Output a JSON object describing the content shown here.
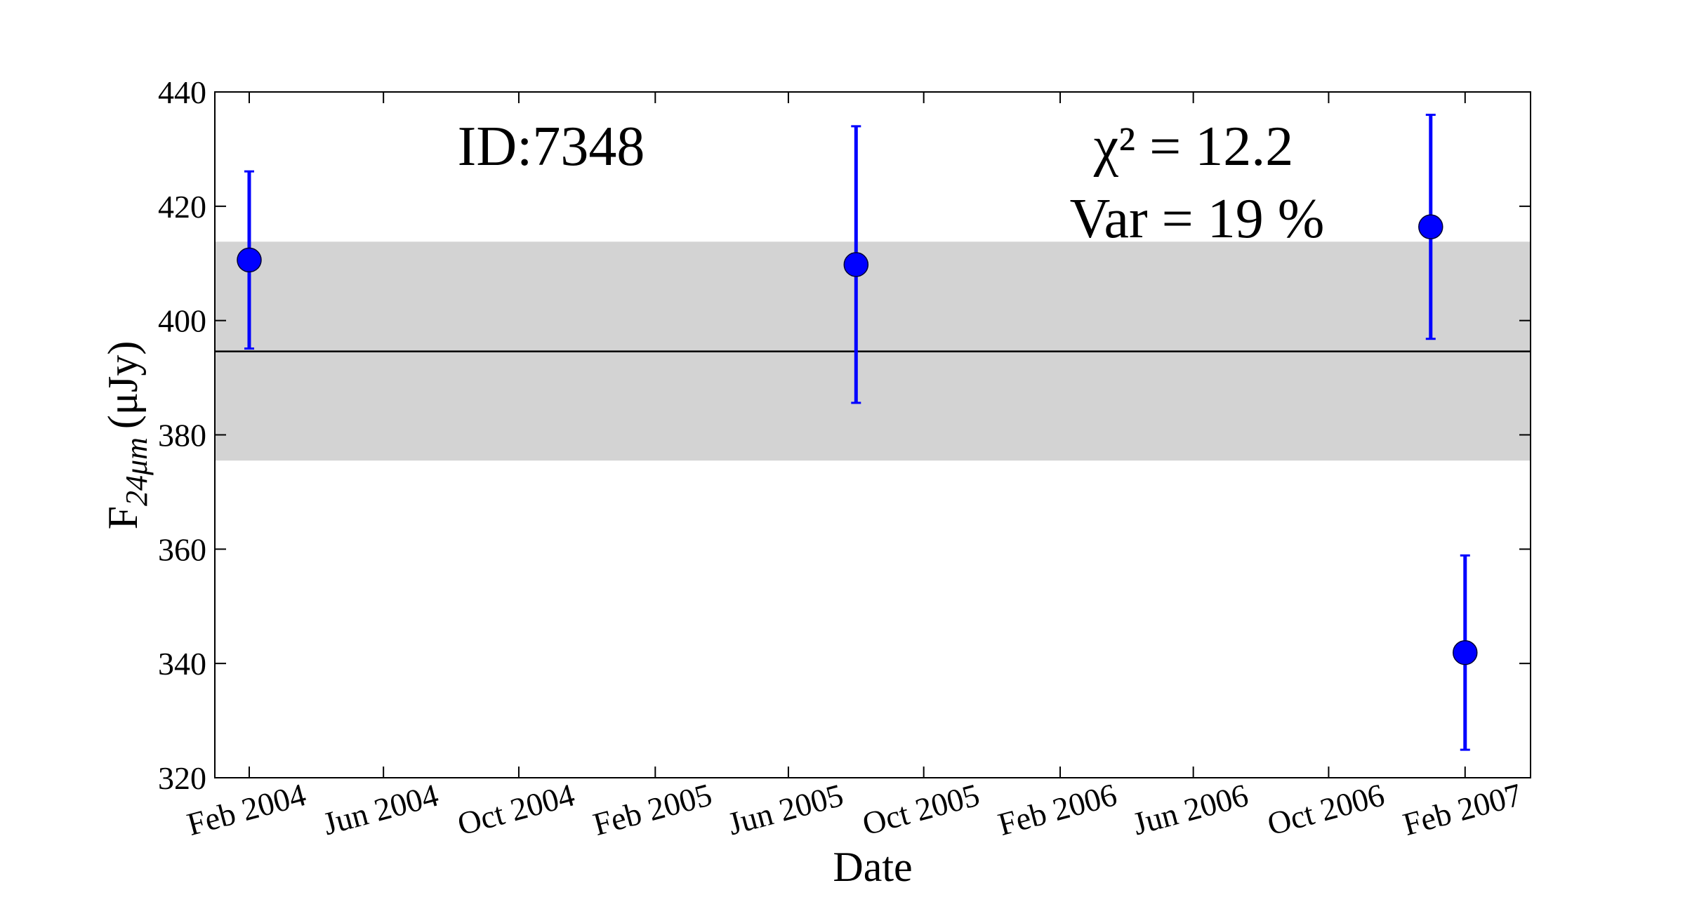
{
  "chart_data": {
    "type": "errorbar",
    "annotation_id": "ID:7348",
    "annotation_chi": "χ² = 12.2",
    "annotation_var": "Var = 19 %",
    "xlabel": "Date",
    "ylabel_symbol": "F",
    "ylabel_subscript": "24μm",
    "ylabel_unit": "(μJy)",
    "x": [
      "2004-02",
      "2005-08",
      "2007-01",
      "2007-02"
    ],
    "series": [
      {
        "color": "#0000ff",
        "values": [
          410.6,
          409.8,
          416.4,
          341.9
        ],
        "errors": [
          15.5,
          24.2,
          19.6,
          17
        ]
      }
    ],
    "mean": 394.6,
    "band": [
      375.5,
      413.8
    ],
    "band_color": "#d3d3d3",
    "xlim": [
      "2004-01",
      "2007-04"
    ],
    "xticks": [
      {
        "value": "2004-02",
        "label": "Feb 2004"
      },
      {
        "value": "2004-06",
        "label": "Jun 2004"
      },
      {
        "value": "2004-10",
        "label": "Oct 2004"
      },
      {
        "value": "2005-02",
        "label": "Feb 2005"
      },
      {
        "value": "2005-06",
        "label": "Jun 2005"
      },
      {
        "value": "2005-10",
        "label": "Oct 2005"
      },
      {
        "value": "2006-02",
        "label": "Feb 2006"
      },
      {
        "value": "2006-06",
        "label": "Jun 2006"
      },
      {
        "value": "2006-10",
        "label": "Oct 2006"
      },
      {
        "value": "2007-02",
        "label": "Feb 2007"
      }
    ],
    "ylim": [
      320,
      440
    ],
    "yticks": [
      320,
      340,
      360,
      380,
      400,
      420,
      440
    ]
  }
}
